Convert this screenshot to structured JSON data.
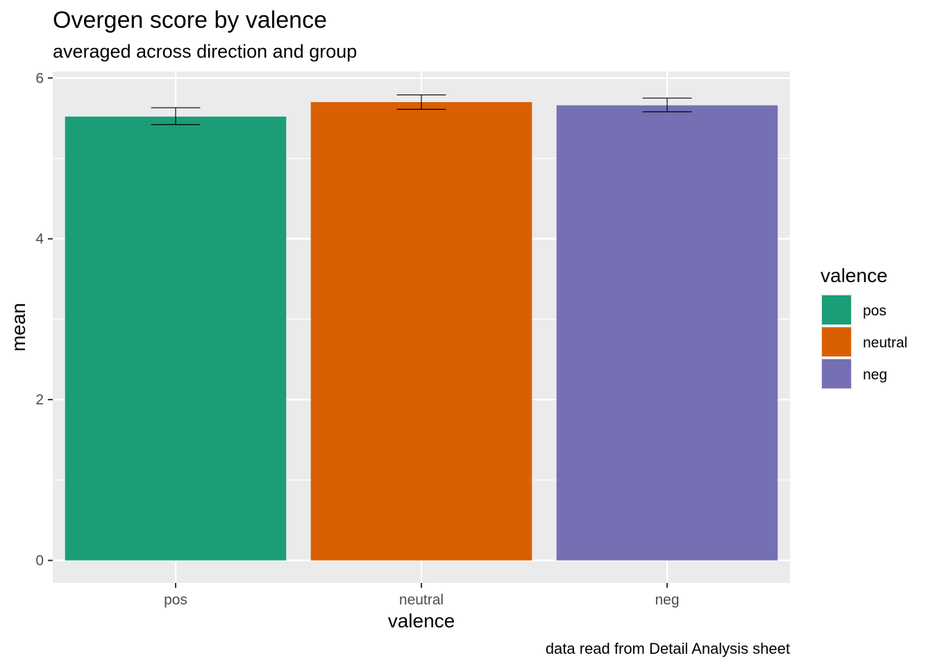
{
  "chart_data": {
    "type": "bar",
    "title": "Overgen score by valence",
    "subtitle": "averaged across direction and group",
    "caption": "data read from Detail Analysis sheet",
    "xlabel": "valence",
    "ylabel": "mean",
    "categories": [
      "pos",
      "neutral",
      "neg"
    ],
    "values": [
      5.52,
      5.7,
      5.66
    ],
    "error": [
      {
        "lower": 5.42,
        "upper": 5.63
      },
      {
        "lower": 5.61,
        "upper": 5.79
      },
      {
        "lower": 5.58,
        "upper": 5.75
      }
    ],
    "colors": [
      "#1B9E77",
      "#D95F02",
      "#7570B3"
    ],
    "y_ticks": [
      0,
      2,
      4,
      6
    ],
    "ylim": [
      -0.28,
      6.08
    ],
    "grid": true,
    "panel_background": "#EBEBEB",
    "legend": {
      "title": "valence",
      "position": "right",
      "items": [
        "pos",
        "neutral",
        "neg"
      ]
    }
  }
}
